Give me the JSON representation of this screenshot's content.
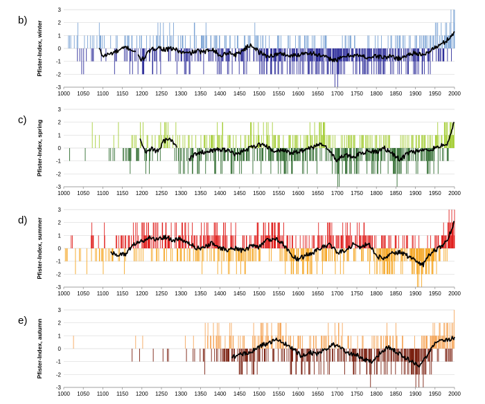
{
  "chart_data": [
    {
      "type": "bar",
      "panel": "b)",
      "ylabel": "Pfister-Index, winter",
      "xlim": [
        1000,
        2000
      ],
      "ylim": [
        -3,
        3
      ],
      "x_ticks": [
        "1000",
        "1050",
        "1100",
        "1150",
        "1200",
        "1250",
        "1300",
        "1350",
        "1400",
        "1450",
        "1500",
        "1550",
        "1600",
        "1650",
        "1700",
        "1750",
        "1800",
        "1850",
        "1900",
        "1950",
        "2000"
      ],
      "y_ticks": [
        "3",
        "2",
        "1",
        "0",
        "-1",
        "-2",
        "-3"
      ],
      "positive_color": "#7ba3d4",
      "negative_color": "#2e2e9a",
      "line_color": "#000000",
      "line_start": 1090,
      "line_gaps": [
        [
          1185,
          1190
        ]
      ],
      "density": [
        [
          1000,
          0.1
        ],
        [
          1090,
          0.35
        ],
        [
          1180,
          0.55
        ],
        [
          1300,
          0.6
        ],
        [
          1440,
          0.85
        ],
        [
          2000,
          0.95
        ]
      ],
      "anomalies": [
        [
          1090,
          0.0
        ],
        [
          1100,
          -0.6
        ],
        [
          1120,
          -0.4
        ],
        [
          1140,
          -0.2
        ],
        [
          1160,
          0.1
        ],
        [
          1180,
          -0.2
        ],
        [
          1200,
          -0.9
        ],
        [
          1220,
          -0.2
        ],
        [
          1240,
          0.1
        ],
        [
          1260,
          -0.1
        ],
        [
          1280,
          0.0
        ],
        [
          1300,
          -0.3
        ],
        [
          1320,
          -0.4
        ],
        [
          1340,
          -0.2
        ],
        [
          1360,
          -0.3
        ],
        [
          1380,
          0.0
        ],
        [
          1400,
          -0.6
        ],
        [
          1420,
          -0.3
        ],
        [
          1440,
          -0.5
        ],
        [
          1460,
          -0.1
        ],
        [
          1480,
          0.3
        ],
        [
          1500,
          -0.3
        ],
        [
          1520,
          -0.6
        ],
        [
          1540,
          -0.5
        ],
        [
          1560,
          -0.4
        ],
        [
          1580,
          -0.6
        ],
        [
          1600,
          -0.5
        ],
        [
          1620,
          -0.3
        ],
        [
          1640,
          -0.4
        ],
        [
          1660,
          -0.6
        ],
        [
          1680,
          -0.8
        ],
        [
          1700,
          -0.9
        ],
        [
          1720,
          -0.6
        ],
        [
          1740,
          -0.5
        ],
        [
          1760,
          -0.6
        ],
        [
          1780,
          -0.7
        ],
        [
          1800,
          -0.6
        ],
        [
          1820,
          -0.7
        ],
        [
          1840,
          -0.6
        ],
        [
          1860,
          -0.8
        ],
        [
          1880,
          -0.5
        ],
        [
          1900,
          -0.3
        ],
        [
          1920,
          -0.6
        ],
        [
          1940,
          -0.1
        ],
        [
          1960,
          0.2
        ],
        [
          1980,
          0.6
        ],
        [
          2000,
          1.3
        ]
      ]
    },
    {
      "type": "bar",
      "panel": "c)",
      "ylabel": "Pfister-Index, spring",
      "xlim": [
        1000,
        2000
      ],
      "ylim": [
        -3,
        3
      ],
      "x_ticks": [
        "1000",
        "1050",
        "1100",
        "1150",
        "1200",
        "1250",
        "1300",
        "1350",
        "1400",
        "1450",
        "1500",
        "1550",
        "1600",
        "1650",
        "1700",
        "1750",
        "1800",
        "1850",
        "1900",
        "1950",
        "2000"
      ],
      "y_ticks": [
        "3",
        "2",
        "1",
        "0",
        "-1",
        "-2",
        "-3"
      ],
      "positive_color": "#a6ce39",
      "negative_color": "#2e6b2e",
      "line_color": "#000000",
      "line_start": 1195,
      "line_gaps": [
        [
          1290,
          1320
        ]
      ],
      "density": [
        [
          1000,
          0.06
        ],
        [
          1100,
          0.12
        ],
        [
          1190,
          0.5
        ],
        [
          1300,
          0.45
        ],
        [
          1320,
          0.6
        ],
        [
          1440,
          0.85
        ],
        [
          2000,
          0.95
        ]
      ],
      "anomalies": [
        [
          1195,
          0.7
        ],
        [
          1210,
          -0.4
        ],
        [
          1225,
          0.0
        ],
        [
          1240,
          -0.3
        ],
        [
          1255,
          0.5
        ],
        [
          1270,
          0.7
        ],
        [
          1285,
          0.3
        ],
        [
          1320,
          -0.9
        ],
        [
          1340,
          -0.4
        ],
        [
          1360,
          -0.3
        ],
        [
          1380,
          -0.2
        ],
        [
          1400,
          -0.1
        ],
        [
          1420,
          -0.2
        ],
        [
          1440,
          -0.5
        ],
        [
          1460,
          -0.2
        ],
        [
          1480,
          0.0
        ],
        [
          1500,
          0.3
        ],
        [
          1520,
          0.1
        ],
        [
          1540,
          -0.3
        ],
        [
          1560,
          -0.1
        ],
        [
          1580,
          -0.4
        ],
        [
          1600,
          -0.3
        ],
        [
          1620,
          -0.1
        ],
        [
          1640,
          0.1
        ],
        [
          1660,
          0.3
        ],
        [
          1680,
          -0.2
        ],
        [
          1700,
          -1.0
        ],
        [
          1720,
          -0.5
        ],
        [
          1740,
          -0.7
        ],
        [
          1760,
          -0.4
        ],
        [
          1780,
          -0.2
        ],
        [
          1800,
          -0.3
        ],
        [
          1820,
          0.0
        ],
        [
          1840,
          -0.4
        ],
        [
          1860,
          -0.9
        ],
        [
          1880,
          -0.4
        ],
        [
          1900,
          -0.3
        ],
        [
          1920,
          -0.2
        ],
        [
          1940,
          -0.1
        ],
        [
          1960,
          0.1
        ],
        [
          1980,
          0.3
        ],
        [
          2000,
          2.0
        ]
      ]
    },
    {
      "type": "bar",
      "panel": "d)",
      "ylabel": "Pfister-Index, summer",
      "xlim": [
        1000,
        2000
      ],
      "ylim": [
        -3,
        3
      ],
      "x_ticks": [
        "1000",
        "1050",
        "1100",
        "1150",
        "1200",
        "1250",
        "1300",
        "1350",
        "1400",
        "1450",
        "1500",
        "1550",
        "1600",
        "1650",
        "1700",
        "1750",
        "1800",
        "1850",
        "1900",
        "1950",
        "2000"
      ],
      "y_ticks": [
        "3",
        "2",
        "1",
        "0",
        "-1",
        "-2",
        "-3"
      ],
      "positive_color": "#e0201e",
      "negative_color": "#f5a623",
      "line_color": "#000000",
      "line_start": 1120,
      "line_gaps": [],
      "density": [
        [
          1000,
          0.18
        ],
        [
          1120,
          0.45
        ],
        [
          1200,
          0.65
        ],
        [
          1300,
          0.7
        ],
        [
          1440,
          0.9
        ],
        [
          2000,
          0.95
        ]
      ],
      "anomalies": [
        [
          1120,
          -0.3
        ],
        [
          1140,
          -0.5
        ],
        [
          1160,
          -0.4
        ],
        [
          1180,
          0.3
        ],
        [
          1200,
          0.6
        ],
        [
          1220,
          0.8
        ],
        [
          1240,
          0.7
        ],
        [
          1260,
          0.9
        ],
        [
          1280,
          0.6
        ],
        [
          1300,
          0.7
        ],
        [
          1320,
          0.4
        ],
        [
          1340,
          0.0
        ],
        [
          1360,
          0.1
        ],
        [
          1380,
          0.4
        ],
        [
          1400,
          0.0
        ],
        [
          1420,
          -0.1
        ],
        [
          1440,
          0.0
        ],
        [
          1460,
          -0.2
        ],
        [
          1480,
          0.2
        ],
        [
          1500,
          0.1
        ],
        [
          1520,
          0.6
        ],
        [
          1540,
          0.8
        ],
        [
          1560,
          0.4
        ],
        [
          1580,
          -0.4
        ],
        [
          1600,
          -0.9
        ],
        [
          1620,
          -0.5
        ],
        [
          1640,
          -0.3
        ],
        [
          1660,
          0.1
        ],
        [
          1680,
          0.3
        ],
        [
          1700,
          -0.3
        ],
        [
          1720,
          -0.2
        ],
        [
          1740,
          0.3
        ],
        [
          1760,
          0.1
        ],
        [
          1780,
          0.4
        ],
        [
          1800,
          -0.6
        ],
        [
          1820,
          -0.8
        ],
        [
          1840,
          -0.4
        ],
        [
          1860,
          -0.3
        ],
        [
          1880,
          -0.6
        ],
        [
          1900,
          -0.9
        ],
        [
          1920,
          -1.3
        ],
        [
          1940,
          -0.3
        ],
        [
          1960,
          0.0
        ],
        [
          1980,
          0.5
        ],
        [
          2000,
          2.1
        ]
      ]
    },
    {
      "type": "bar",
      "panel": "e)",
      "ylabel": "Pfister-Index, autumn",
      "xlim": [
        1000,
        2000
      ],
      "ylim": [
        -3,
        3
      ],
      "x_ticks": [
        "1000",
        "1050",
        "1100",
        "1150",
        "1200",
        "1250",
        "1300",
        "1350",
        "1400",
        "1450",
        "1500",
        "1550",
        "1600",
        "1650",
        "1700",
        "1750",
        "1800",
        "1850",
        "1900",
        "1950",
        "2000"
      ],
      "y_ticks": [
        "3",
        "2",
        "1",
        "0",
        "-1",
        "-2",
        "-3"
      ],
      "positive_color": "#f5a65a",
      "negative_color": "#7a1f0f",
      "line_color": "#000000",
      "line_start": 1430,
      "line_gaps": [],
      "density": [
        [
          1000,
          0.01
        ],
        [
          1200,
          0.03
        ],
        [
          1300,
          0.05
        ],
        [
          1350,
          0.2
        ],
        [
          1430,
          0.75
        ],
        [
          2000,
          0.95
        ]
      ],
      "anomalies": [
        [
          1430,
          -0.7
        ],
        [
          1450,
          -0.5
        ],
        [
          1470,
          -0.3
        ],
        [
          1490,
          -0.1
        ],
        [
          1510,
          0.3
        ],
        [
          1530,
          0.5
        ],
        [
          1550,
          0.7
        ],
        [
          1570,
          0.3
        ],
        [
          1590,
          -0.1
        ],
        [
          1610,
          -0.6
        ],
        [
          1630,
          -0.3
        ],
        [
          1650,
          -0.4
        ],
        [
          1670,
          0.0
        ],
        [
          1690,
          0.3
        ],
        [
          1710,
          0.1
        ],
        [
          1730,
          -0.4
        ],
        [
          1750,
          -0.5
        ],
        [
          1770,
          -0.9
        ],
        [
          1790,
          -1.0
        ],
        [
          1810,
          -0.3
        ],
        [
          1830,
          0.1
        ],
        [
          1850,
          -0.2
        ],
        [
          1870,
          -0.6
        ],
        [
          1890,
          -1.0
        ],
        [
          1910,
          -1.3
        ],
        [
          1930,
          -0.6
        ],
        [
          1950,
          0.4
        ],
        [
          1970,
          0.6
        ],
        [
          1990,
          0.7
        ],
        [
          2000,
          0.9
        ]
      ]
    }
  ]
}
